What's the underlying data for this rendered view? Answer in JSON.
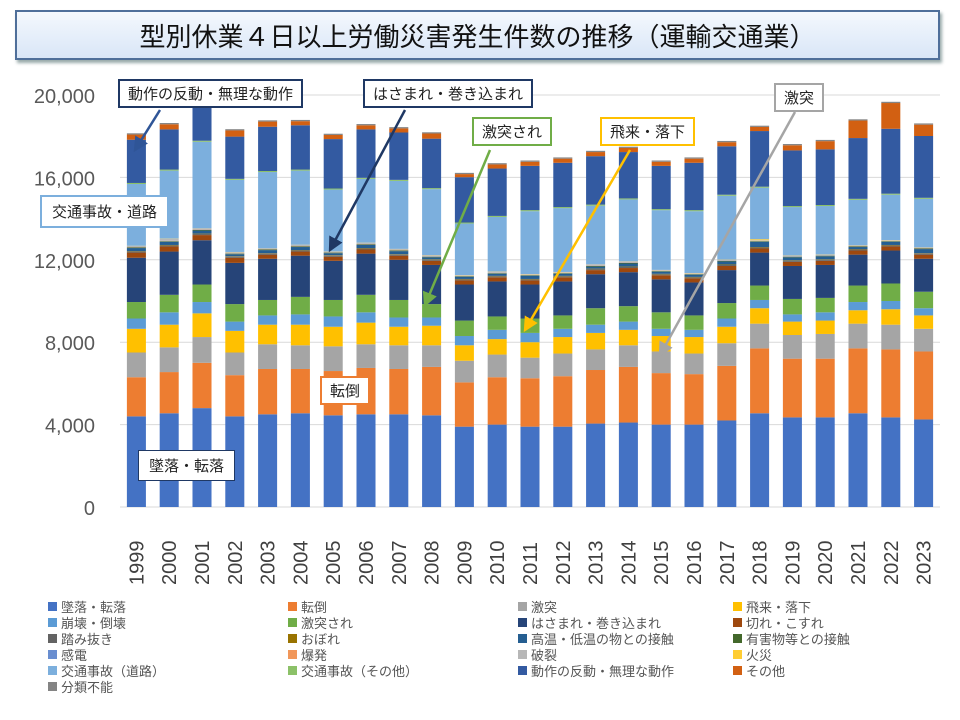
{
  "chart_data": {
    "type": "bar",
    "stacked": true,
    "title": "型別休業４日以上労働災害発生件数の推移（運輸交通業）",
    "xlabel": "",
    "ylabel": "",
    "ylim": [
      0,
      20000
    ],
    "yticks": [
      "0",
      "4,000",
      "8,000",
      "12,000",
      "16,000",
      "20,000"
    ],
    "ytick_values": [
      0,
      4000,
      8000,
      12000,
      16000,
      20000
    ],
    "grid": true,
    "legend_position": "bottom",
    "categories": [
      "1999",
      "2000",
      "2001",
      "2002",
      "2003",
      "2004",
      "2005",
      "2006",
      "2007",
      "2008",
      "2009",
      "2010",
      "2011",
      "2012",
      "2013",
      "2014",
      "2015",
      "2016",
      "2017",
      "2018",
      "2019",
      "2020",
      "2021",
      "2022",
      "2023"
    ],
    "series": [
      {
        "name": "墜落・転落",
        "color": "#4472c4",
        "values": [
          4400,
          4550,
          4800,
          4400,
          4500,
          4550,
          4450,
          4500,
          4500,
          4450,
          3900,
          4000,
          3900,
          3900,
          4050,
          4100,
          4000,
          4000,
          4200,
          4550,
          4350,
          4350,
          4550,
          4350,
          4250
        ]
      },
      {
        "name": "転倒",
        "color": "#ed7d31",
        "values": [
          1900,
          2000,
          2200,
          2000,
          2200,
          2150,
          2150,
          2250,
          2200,
          2350,
          2150,
          2300,
          2350,
          2450,
          2600,
          2700,
          2500,
          2450,
          2650,
          3150,
          2850,
          2850,
          3150,
          3300,
          3300
        ]
      },
      {
        "name": "激突",
        "color": "#a5a5a5",
        "values": [
          1200,
          1200,
          1250,
          1100,
          1200,
          1150,
          1200,
          1150,
          1150,
          1050,
          1050,
          1100,
          1000,
          1100,
          1000,
          1050,
          1050,
          1000,
          1100,
          1200,
          1150,
          1200,
          1200,
          1200,
          1100
        ]
      },
      {
        "name": "飛来・落下",
        "color": "#ffc000",
        "values": [
          1150,
          1100,
          1150,
          1050,
          950,
          1000,
          950,
          1050,
          900,
          950,
          750,
          750,
          750,
          800,
          800,
          750,
          750,
          800,
          800,
          750,
          650,
          650,
          650,
          750,
          650
        ]
      },
      {
        "name": "崩壊・倒壊",
        "color": "#5b9bd5",
        "values": [
          500,
          600,
          550,
          450,
          450,
          500,
          500,
          500,
          450,
          400,
          450,
          450,
          450,
          400,
          400,
          400,
          350,
          350,
          400,
          400,
          350,
          400,
          400,
          400,
          350
        ]
      },
      {
        "name": "激突され",
        "color": "#70ad47",
        "values": [
          800,
          850,
          850,
          850,
          750,
          850,
          800,
          850,
          850,
          650,
          750,
          650,
          700,
          650,
          800,
          750,
          800,
          700,
          750,
          700,
          750,
          700,
          800,
          850,
          800
        ]
      },
      {
        "name": "はさまれ・巻き込まれ",
        "color": "#264478",
        "values": [
          2150,
          2100,
          2150,
          2000,
          2000,
          2000,
          1900,
          2000,
          1950,
          1900,
          1750,
          1700,
          1650,
          1650,
          1650,
          1650,
          1600,
          1600,
          1600,
          1600,
          1600,
          1600,
          1500,
          1600,
          1600
        ]
      },
      {
        "name": "切れ・こすれ",
        "color": "#9e480e",
        "values": [
          250,
          250,
          250,
          250,
          200,
          200,
          200,
          200,
          200,
          200,
          200,
          200,
          200,
          200,
          200,
          200,
          200,
          200,
          200,
          200,
          200,
          200,
          200,
          200,
          200
        ]
      },
      {
        "name": "踏み抜き",
        "color": "#636363",
        "values": [
          50,
          50,
          50,
          50,
          50,
          50,
          50,
          50,
          50,
          50,
          50,
          50,
          50,
          50,
          50,
          50,
          50,
          50,
          50,
          50,
          50,
          50,
          50,
          50,
          50
        ]
      },
      {
        "name": "おぼれ",
        "color": "#997300",
        "values": [
          20,
          20,
          20,
          20,
          20,
          20,
          20,
          20,
          20,
          20,
          20,
          20,
          20,
          20,
          20,
          20,
          20,
          20,
          20,
          20,
          20,
          20,
          20,
          20,
          20
        ]
      },
      {
        "name": "高温・低温の物との接触",
        "color": "#255e91",
        "values": [
          150,
          150,
          150,
          100,
          150,
          150,
          100,
          150,
          150,
          100,
          100,
          100,
          150,
          100,
          100,
          150,
          100,
          100,
          150,
          250,
          150,
          150,
          100,
          150,
          200
        ]
      },
      {
        "name": "有害物等との接触",
        "color": "#43682b",
        "values": [
          30,
          30,
          30,
          30,
          30,
          30,
          30,
          30,
          30,
          30,
          30,
          30,
          30,
          30,
          30,
          30,
          30,
          30,
          30,
          30,
          30,
          30,
          30,
          30,
          30
        ]
      },
      {
        "name": "感電",
        "color": "#698ed0",
        "values": [
          10,
          10,
          10,
          10,
          10,
          10,
          10,
          10,
          10,
          10,
          10,
          10,
          10,
          10,
          10,
          10,
          10,
          10,
          10,
          10,
          10,
          10,
          10,
          10,
          10
        ]
      },
      {
        "name": "爆発",
        "color": "#f1975a",
        "values": [
          10,
          10,
          10,
          10,
          10,
          10,
          10,
          10,
          10,
          10,
          10,
          10,
          10,
          10,
          10,
          10,
          10,
          10,
          10,
          10,
          10,
          10,
          10,
          10,
          10
        ]
      },
      {
        "name": "破裂",
        "color": "#b7b7b7",
        "values": [
          50,
          100,
          50,
          50,
          30,
          50,
          30,
          50,
          50,
          50,
          30,
          50,
          30,
          30,
          50,
          50,
          30,
          30,
          30,
          30,
          30,
          30,
          30,
          30,
          30
        ]
      },
      {
        "name": "火災",
        "color": "#ffcd33",
        "values": [
          10,
          10,
          10,
          10,
          10,
          10,
          10,
          10,
          10,
          10,
          10,
          10,
          10,
          10,
          10,
          10,
          10,
          10,
          10,
          50,
          10,
          10,
          10,
          10,
          10
        ]
      },
      {
        "name": "交通事故（道路）",
        "color": "#7cafdd",
        "values": [
          3000,
          3300,
          4200,
          3500,
          3700,
          3600,
          3000,
          3100,
          3300,
          3200,
          2500,
          2650,
          3050,
          3100,
          2850,
          3000,
          2900,
          3000,
          3100,
          2500,
          2350,
          2350,
          2200,
          2200,
          2350
        ]
      },
      {
        "name": "交通事故（その他）",
        "color": "#8cc168",
        "values": [
          50,
          50,
          50,
          50,
          50,
          50,
          50,
          50,
          50,
          50,
          50,
          50,
          50,
          50,
          50,
          50,
          50,
          50,
          50,
          50,
          50,
          50,
          50,
          50,
          50
        ]
      },
      {
        "name": "動作の反動・無理な動作",
        "color": "#335aa1",
        "values": [
          2100,
          1950,
          2200,
          2050,
          2150,
          2150,
          2400,
          2350,
          2300,
          2400,
          2200,
          2300,
          2150,
          2150,
          2350,
          2250,
          2100,
          2300,
          2350,
          2700,
          2700,
          2700,
          2950,
          3150,
          3000
        ]
      },
      {
        "name": "その他",
        "color": "#d26012",
        "values": [
          250,
          250,
          250,
          300,
          250,
          200,
          200,
          200,
          200,
          250,
          150,
          200,
          200,
          200,
          200,
          200,
          200,
          200,
          200,
          200,
          250,
          400,
          850,
          1250,
          550
        ]
      },
      {
        "name": "分類不能",
        "color": "#848484",
        "values": [
          60,
          60,
          60,
          60,
          60,
          60,
          60,
          60,
          60,
          60,
          60,
          60,
          60,
          60,
          60,
          60,
          60,
          60,
          60,
          60,
          60,
          60,
          60,
          60,
          60
        ]
      }
    ],
    "annotations": [
      {
        "text": "動作の反動・無理な動作",
        "target": "1999",
        "series": "動作の反動・無理な動作",
        "border": "#1f3864"
      },
      {
        "text": "はさまれ・巻き込まれ",
        "target": "2005",
        "series": "はさまれ・巻き込まれ",
        "border": "#1f3864"
      },
      {
        "text": "激突され",
        "target": "2008",
        "series": "激突され",
        "border": "#70ad47"
      },
      {
        "text": "飛来・落下",
        "target": "2011",
        "series": "飛来・落下",
        "border": "#ffc000"
      },
      {
        "text": "激突",
        "target": "2015",
        "series": "激突",
        "border": "#a5a5a5"
      },
      {
        "text": "交通事故・道路",
        "target": "",
        "series": "交通事故（道路）",
        "border": "#7cafdd"
      },
      {
        "text": "転倒",
        "target": "",
        "series": "転倒",
        "border": "#ed7d31"
      },
      {
        "text": "墜落・転落",
        "target": "",
        "series": "墜落・転落",
        "border": "#1f3864"
      }
    ]
  }
}
